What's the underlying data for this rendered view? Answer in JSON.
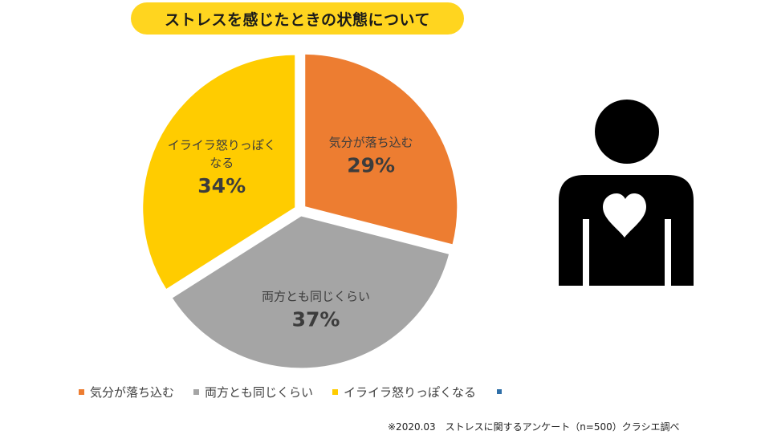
{
  "title": "ストレスを感じたときの状態について",
  "chart_data": {
    "type": "pie",
    "slices": [
      {
        "label_lines": [
          "気分が落ち込む"
        ],
        "legend": "気分が落ち込む",
        "value": 29,
        "value_label": "29%",
        "color": "#ED7D31"
      },
      {
        "label_lines": [
          "両方とも同じくらい"
        ],
        "legend": "両方とも同じくらい",
        "value": 37,
        "value_label": "37%",
        "color": "#A5A5A5"
      },
      {
        "label_lines": [
          "イライラ怒りっぽく",
          "なる"
        ],
        "legend": "イライラ怒りっぽくなる",
        "value": 34,
        "value_label": "34%",
        "color": "#FFCC00"
      }
    ],
    "legend_position": "bottom-left"
  },
  "legend_extra_color": "#2F6FA8",
  "source_note": "※2020.03　ストレスに関するアンケート（n=500）クラシエ調べ",
  "icon": {
    "name": "person-heart-icon",
    "body_color": "#000000",
    "heart_color": "#ffffff"
  }
}
